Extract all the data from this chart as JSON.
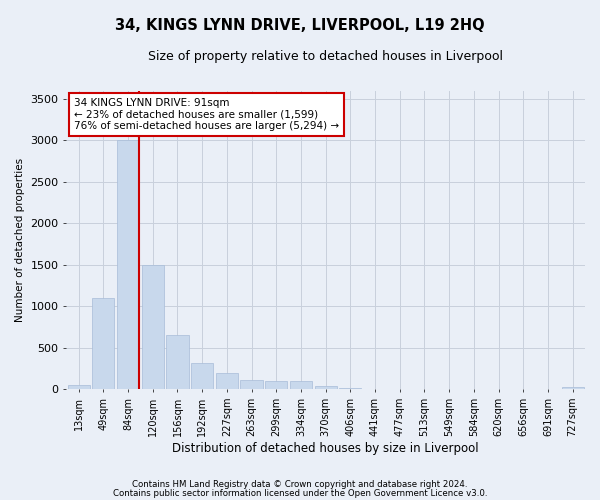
{
  "title": "34, KINGS LYNN DRIVE, LIVERPOOL, L19 2HQ",
  "subtitle": "Size of property relative to detached houses in Liverpool",
  "xlabel": "Distribution of detached houses by size in Liverpool",
  "ylabel": "Number of detached properties",
  "bar_color": "#c8d8ec",
  "bar_edge_color": "#a8bcd8",
  "grid_color": "#c8d0dc",
  "background_color": "#eaeff7",
  "fig_background_color": "#eaeff7",
  "categories": [
    "13sqm",
    "49sqm",
    "84sqm",
    "120sqm",
    "156sqm",
    "192sqm",
    "227sqm",
    "263sqm",
    "299sqm",
    "334sqm",
    "370sqm",
    "406sqm",
    "441sqm",
    "477sqm",
    "513sqm",
    "549sqm",
    "584sqm",
    "620sqm",
    "656sqm",
    "691sqm",
    "727sqm"
  ],
  "values": [
    50,
    1100,
    3000,
    1500,
    650,
    320,
    200,
    110,
    100,
    100,
    45,
    20,
    0,
    0,
    0,
    0,
    0,
    0,
    0,
    0,
    30
  ],
  "ylim": [
    0,
    3600
  ],
  "yticks": [
    0,
    500,
    1000,
    1500,
    2000,
    2500,
    3000,
    3500
  ],
  "vline_color": "#cc0000",
  "annotation_title": "34 KINGS LYNN DRIVE: 91sqm",
  "annotation_line1": "← 23% of detached houses are smaller (1,599)",
  "annotation_line2": "76% of semi-detached houses are larger (5,294) →",
  "annotation_box_color": "#ffffff",
  "annotation_box_edge": "#cc0000",
  "footer1": "Contains HM Land Registry data © Crown copyright and database right 2024.",
  "footer2": "Contains public sector information licensed under the Open Government Licence v3.0."
}
